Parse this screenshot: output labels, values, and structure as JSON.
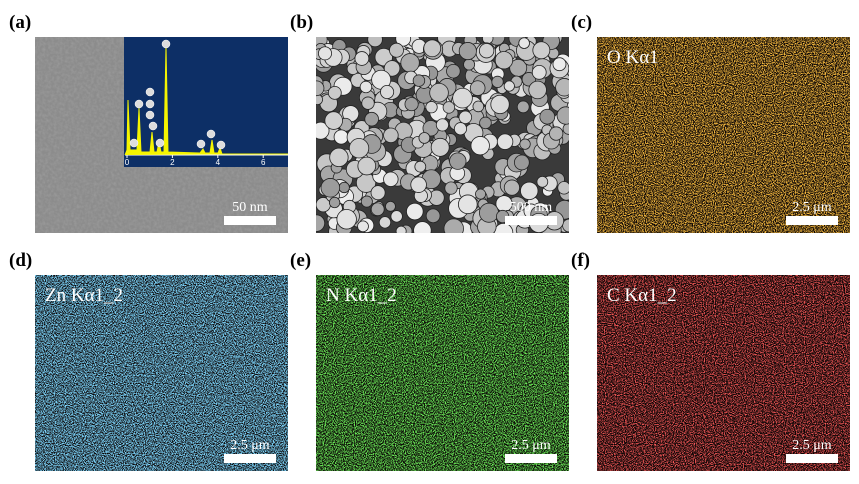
{
  "panels": [
    {
      "label": "(a)",
      "scale_bar": "50 nm",
      "inset_ticks": [
        0,
        2,
        4,
        6
      ]
    },
    {
      "label": "(b)",
      "scale_bar": "500 nm"
    },
    {
      "label": "(c)",
      "map": "O Kα1",
      "scale_bar": "2.5 μm"
    },
    {
      "label": "(d)",
      "map": "Zn Kα1_2",
      "scale_bar": "2.5 μm"
    },
    {
      "label": "(e)",
      "map": "N Kα1_2",
      "scale_bar": "2.5 μm"
    },
    {
      "label": "(f)",
      "map": "C Kα1_2",
      "scale_bar": "2.5 μm"
    }
  ]
}
